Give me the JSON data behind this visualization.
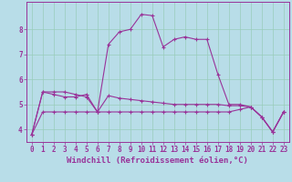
{
  "xlabel": "Windchill (Refroidissement éolien,°C)",
  "background_color": "#b8dde8",
  "grid_color": "#99ccbb",
  "line_color": "#993399",
  "xmin": -0.5,
  "xmax": 23.5,
  "ymin": 3.5,
  "ymax": 9.1,
  "yticks": [
    4,
    5,
    6,
    7,
    8
  ],
  "xticks": [
    0,
    1,
    2,
    3,
    4,
    5,
    6,
    7,
    8,
    9,
    10,
    11,
    12,
    13,
    14,
    15,
    16,
    17,
    18,
    19,
    20,
    21,
    22,
    23
  ],
  "line1_x": [
    0,
    1,
    2,
    3,
    4,
    5,
    6,
    7,
    8,
    9,
    10,
    11,
    12,
    13,
    14,
    15,
    16,
    17,
    18,
    19,
    20,
    21,
    22,
    23
  ],
  "line1_y": [
    3.8,
    5.5,
    5.5,
    5.5,
    5.4,
    5.3,
    4.7,
    7.4,
    7.9,
    8.0,
    8.6,
    8.55,
    7.3,
    7.6,
    7.7,
    7.6,
    7.6,
    6.2,
    5.0,
    5.0,
    4.9,
    4.5,
    3.9,
    4.7
  ],
  "line2_x": [
    0,
    1,
    2,
    3,
    4,
    5,
    6,
    7,
    8,
    9,
    10,
    11,
    12,
    13,
    14,
    15,
    16,
    17,
    18,
    19,
    20,
    21,
    22,
    23
  ],
  "line2_y": [
    3.8,
    5.5,
    5.4,
    5.3,
    5.3,
    5.4,
    4.7,
    5.35,
    5.25,
    5.2,
    5.15,
    5.1,
    5.05,
    5.0,
    5.0,
    5.0,
    5.0,
    5.0,
    4.95,
    4.95,
    4.9,
    4.5,
    3.9,
    4.7
  ],
  "line3_x": [
    0,
    1,
    2,
    3,
    4,
    5,
    6,
    7,
    8,
    9,
    10,
    11,
    12,
    13,
    14,
    15,
    16,
    17,
    18,
    19,
    20,
    21,
    22,
    23
  ],
  "line3_y": [
    3.8,
    4.7,
    4.7,
    4.7,
    4.7,
    4.7,
    4.7,
    4.7,
    4.7,
    4.7,
    4.7,
    4.7,
    4.7,
    4.7,
    4.7,
    4.7,
    4.7,
    4.7,
    4.7,
    4.8,
    4.9,
    4.5,
    3.9,
    4.7
  ],
  "xlabel_fontsize": 6.5,
  "tick_fontsize": 5.5
}
